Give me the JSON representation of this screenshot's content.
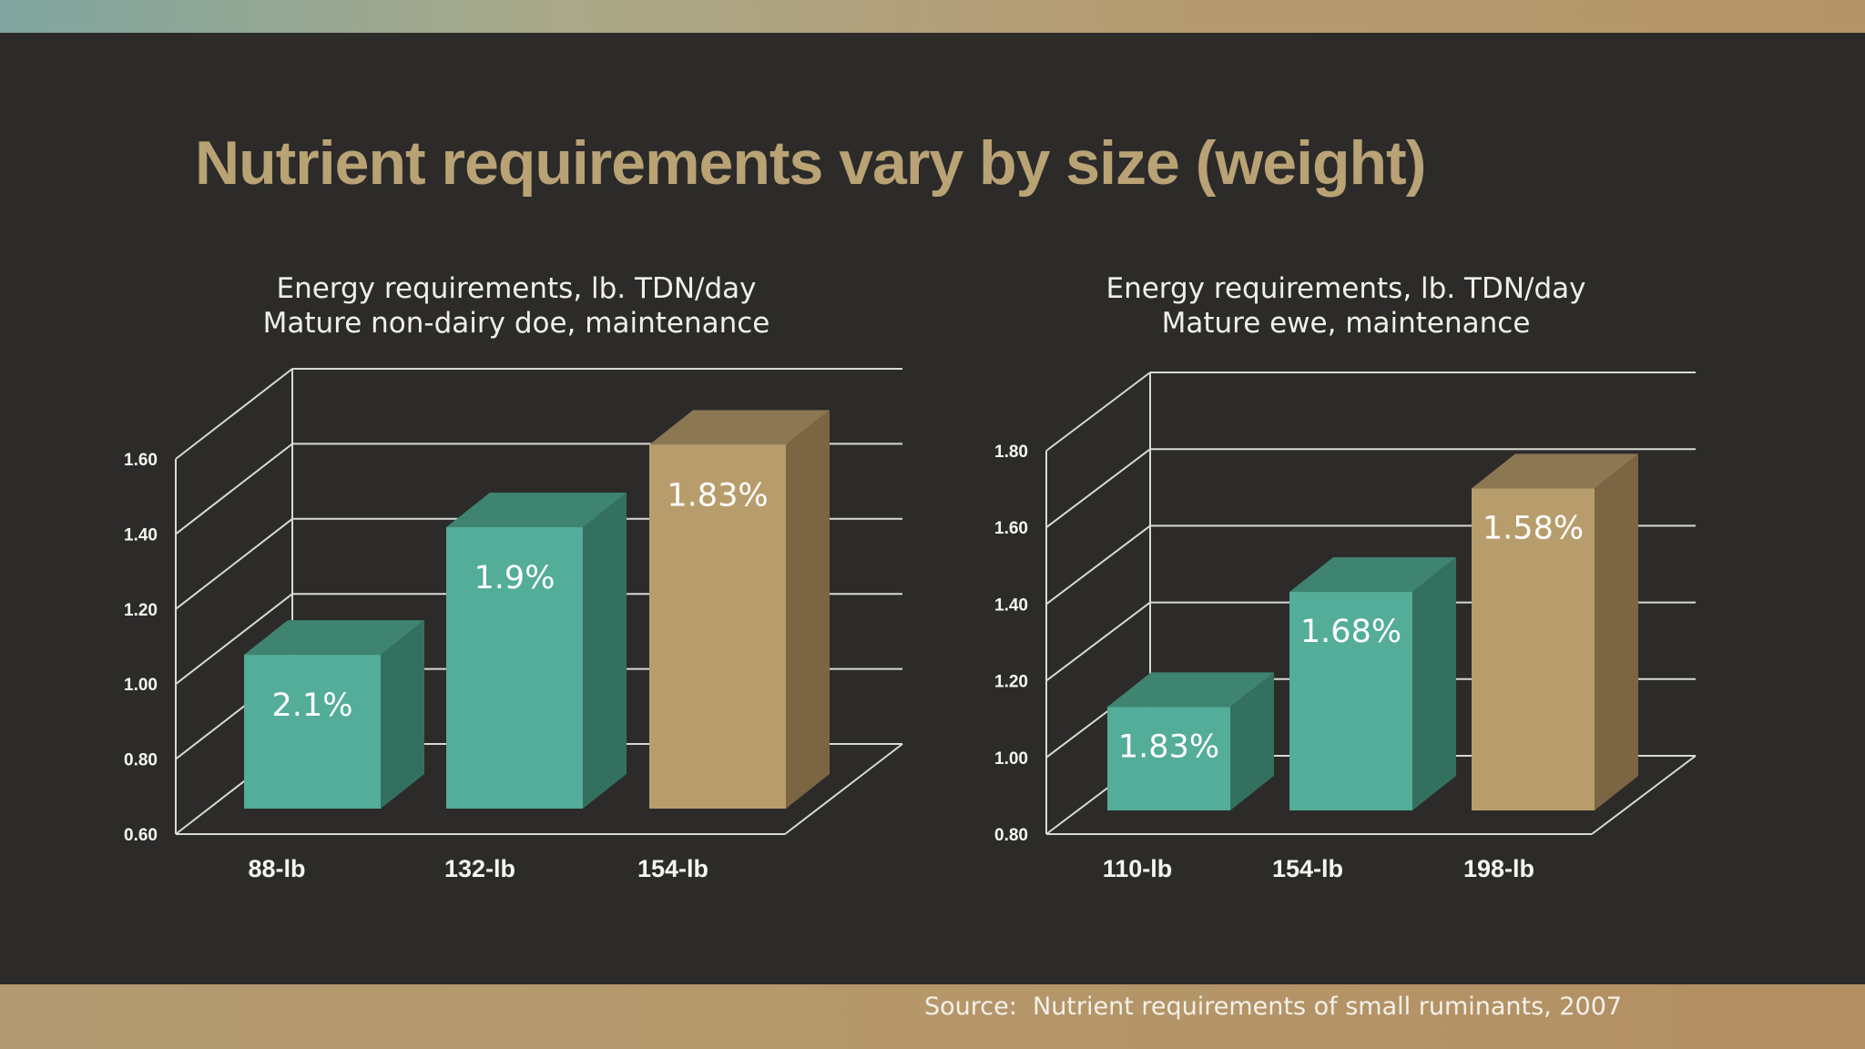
{
  "title": "Nutrient requirements vary by size (weight)",
  "source": "Source:  Nutrient requirements of small ruminants, 2007",
  "colors": {
    "background": "#2c2b2a",
    "title": "#b9a274",
    "teal_front": "#53ad98",
    "teal_top": "#3e8471",
    "teal_side": "#34705f",
    "tan_front": "#b89d6c",
    "tan_top": "#8c7753",
    "tan_side": "#7b6543",
    "gridline": "#d9d9d4"
  },
  "chart_data": [
    {
      "type": "bar",
      "title_lines": [
        "Energy requirements, lb. TDN/day",
        "Mature non-dairy doe, maintenance"
      ],
      "categories": [
        "88-lb",
        "132-lb",
        "154-lb"
      ],
      "values": [
        1.01,
        1.35,
        1.57
      ],
      "data_labels": [
        "2.1%",
        "1.9%",
        "1.83%"
      ],
      "highlight": [
        false,
        false,
        true
      ],
      "ylim": [
        0.6,
        1.6
      ],
      "yticks": [
        "0.60",
        "0.80",
        "1.00",
        "1.20",
        "1.40",
        "1.60"
      ],
      "grid": true
    },
    {
      "type": "bar",
      "title_lines": [
        "Energy requirements, lb. TDN/day",
        "Mature ewe, maintenance"
      ],
      "categories": [
        "110-lb",
        "154-lb",
        "198-lb"
      ],
      "values": [
        1.07,
        1.37,
        1.64
      ],
      "data_labels": [
        "1.83%",
        "1.68%",
        "1.58%"
      ],
      "highlight": [
        false,
        false,
        true
      ],
      "ylim": [
        0.8,
        1.8
      ],
      "yticks": [
        "0.80",
        "1.00",
        "1.20",
        "1.40",
        "1.60",
        "1.80"
      ],
      "grid": true
    }
  ]
}
